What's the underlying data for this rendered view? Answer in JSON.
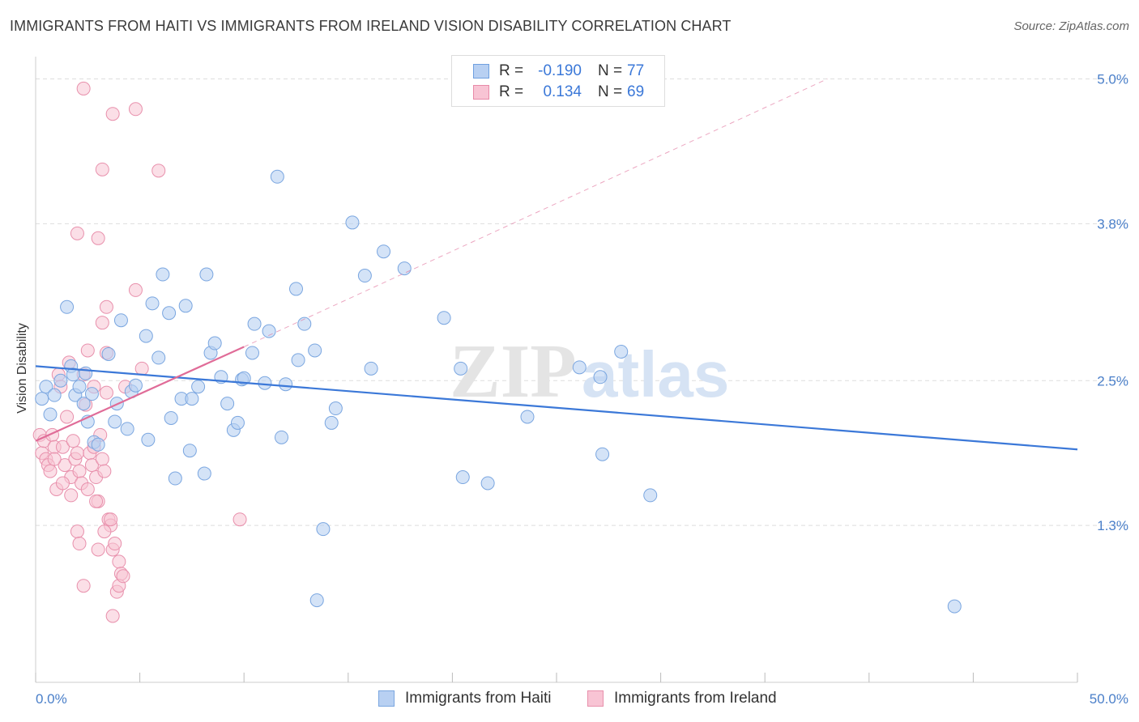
{
  "title": "IMMIGRANTS FROM HAITI VS IMMIGRANTS FROM IRELAND VISION DISABILITY CORRELATION CHART",
  "source": "Source: ZipAtlas.com",
  "watermark": {
    "zip": "ZIP",
    "atlas": "atlas"
  },
  "legend_stats": [
    {
      "r_label": "R =",
      "r_value": "-0.190",
      "n_label": "N =",
      "n_value": "77",
      "fill": "#b8d0f2",
      "stroke": "#6fa0e0"
    },
    {
      "r_label": "R =",
      "r_value": "0.134",
      "n_label": "N =",
      "n_value": "69",
      "fill": "#f8c4d4",
      "stroke": "#e88aa8"
    }
  ],
  "colors": {
    "haiti_fill": "#b8d0f2",
    "haiti_stroke": "#7aa6e0",
    "haiti_line": "#3b78d8",
    "ireland_fill": "#f8c4d4",
    "ireland_stroke": "#e890ac",
    "ireland_line": "#e06c98",
    "axis_text": "#4a7fc9",
    "grid": "#dddddd"
  },
  "chart_data": {
    "type": "scatter",
    "xlabel": "",
    "ylabel": "Vision Disability",
    "xlim": [
      0,
      50
    ],
    "ylim": [
      0,
      5.2
    ],
    "x_tick_labels": [
      "0.0%",
      "50.0%"
    ],
    "y_ticks": [
      1.3,
      2.5,
      3.8,
      5.0
    ],
    "y_tick_labels": [
      "1.3%",
      "2.5%",
      "3.8%",
      "5.0%"
    ],
    "grid": true,
    "legend_placement": "bottom-center",
    "series": [
      {
        "name": "Immigrants from Haiti",
        "trend": {
          "x": [
            0,
            50
          ],
          "y": [
            2.62,
            1.93
          ]
        },
        "points": [
          [
            0.3,
            2.35
          ],
          [
            0.5,
            2.45
          ],
          [
            0.7,
            2.22
          ],
          [
            0.9,
            2.38
          ],
          [
            1.2,
            2.5
          ],
          [
            1.5,
            3.11
          ],
          [
            1.7,
            2.62
          ],
          [
            1.8,
            2.55
          ],
          [
            1.9,
            2.38
          ],
          [
            2.1,
            2.45
          ],
          [
            2.3,
            2.31
          ],
          [
            2.5,
            2.16
          ],
          [
            2.4,
            2.56
          ],
          [
            2.7,
            2.39
          ],
          [
            2.8,
            1.99
          ],
          [
            3.0,
            1.97
          ],
          [
            3.5,
            2.72
          ],
          [
            3.8,
            2.16
          ],
          [
            3.9,
            2.31
          ],
          [
            4.1,
            3.0
          ],
          [
            4.4,
            2.1
          ],
          [
            4.6,
            2.41
          ],
          [
            4.8,
            2.46
          ],
          [
            5.3,
            2.87
          ],
          [
            5.4,
            2.01
          ],
          [
            5.6,
            3.14
          ],
          [
            5.9,
            2.69
          ],
          [
            6.1,
            3.38
          ],
          [
            6.4,
            3.06
          ],
          [
            6.5,
            2.19
          ],
          [
            6.7,
            1.69
          ],
          [
            7.0,
            2.35
          ],
          [
            7.2,
            3.12
          ],
          [
            7.4,
            1.92
          ],
          [
            7.5,
            2.35
          ],
          [
            7.8,
            2.45
          ],
          [
            8.1,
            1.73
          ],
          [
            8.2,
            3.38
          ],
          [
            8.4,
            2.73
          ],
          [
            8.6,
            2.81
          ],
          [
            8.9,
            2.53
          ],
          [
            9.2,
            2.31
          ],
          [
            9.5,
            2.09
          ],
          [
            9.7,
            2.15
          ],
          [
            9.9,
            2.51
          ],
          [
            10.0,
            2.52
          ],
          [
            10.4,
            2.73
          ],
          [
            10.5,
            2.97
          ],
          [
            11.0,
            2.48
          ],
          [
            11.2,
            2.91
          ],
          [
            11.6,
            4.19
          ],
          [
            11.8,
            2.03
          ],
          [
            12.0,
            2.47
          ],
          [
            12.5,
            3.26
          ],
          [
            12.6,
            2.67
          ],
          [
            12.9,
            2.97
          ],
          [
            13.4,
            2.75
          ],
          [
            13.8,
            1.27
          ],
          [
            13.5,
            0.68
          ],
          [
            14.2,
            2.15
          ],
          [
            14.4,
            2.27
          ],
          [
            15.2,
            3.81
          ],
          [
            15.8,
            3.37
          ],
          [
            16.1,
            2.6
          ],
          [
            16.7,
            3.57
          ],
          [
            17.7,
            3.43
          ],
          [
            19.6,
            3.02
          ],
          [
            20.4,
            2.6
          ],
          [
            20.5,
            1.7
          ],
          [
            21.7,
            1.65
          ],
          [
            23.6,
            2.2
          ],
          [
            26.1,
            2.61
          ],
          [
            27.1,
            2.53
          ],
          [
            27.2,
            1.89
          ],
          [
            28.1,
            2.74
          ],
          [
            29.5,
            1.55
          ],
          [
            44.1,
            0.63
          ]
        ]
      },
      {
        "name": "Immigrants from Ireland",
        "trend": {
          "x": [
            0,
            10
          ],
          "y": [
            2.0,
            2.78
          ],
          "extended_to": [
            38,
            5.0
          ]
        },
        "points": [
          [
            0.2,
            2.05
          ],
          [
            0.3,
            1.9
          ],
          [
            0.4,
            2.0
          ],
          [
            0.5,
            1.85
          ],
          [
            0.6,
            1.8
          ],
          [
            0.7,
            1.75
          ],
          [
            0.8,
            2.05
          ],
          [
            0.9,
            1.95
          ],
          [
            1.0,
            1.6
          ],
          [
            1.1,
            2.55
          ],
          [
            1.2,
            2.45
          ],
          [
            1.3,
            1.95
          ],
          [
            1.4,
            1.8
          ],
          [
            1.5,
            2.2
          ],
          [
            1.6,
            2.65
          ],
          [
            1.7,
            1.7
          ],
          [
            1.8,
            2.0
          ],
          [
            1.9,
            1.85
          ],
          [
            2.0,
            1.9
          ],
          [
            2.1,
            1.75
          ],
          [
            2.2,
            1.65
          ],
          [
            2.3,
            2.55
          ],
          [
            2.4,
            2.3
          ],
          [
            2.5,
            1.6
          ],
          [
            2.6,
            1.9
          ],
          [
            2.7,
            1.8
          ],
          [
            2.8,
            2.45
          ],
          [
            2.9,
            1.7
          ],
          [
            3.0,
            1.5
          ],
          [
            3.1,
            2.05
          ],
          [
            3.2,
            1.85
          ],
          [
            3.3,
            1.75
          ],
          [
            3.4,
            2.4
          ],
          [
            3.5,
            1.35
          ],
          [
            3.6,
            1.3
          ],
          [
            3.7,
            1.1
          ],
          [
            3.8,
            1.15
          ],
          [
            3.9,
            0.75
          ],
          [
            4.0,
            1.0
          ],
          [
            4.1,
            0.9
          ],
          [
            0.9,
            1.85
          ],
          [
            1.3,
            1.65
          ],
          [
            1.7,
            1.55
          ],
          [
            2.0,
            1.25
          ],
          [
            2.1,
            1.15
          ],
          [
            2.3,
            0.8
          ],
          [
            2.5,
            2.75
          ],
          [
            2.8,
            1.95
          ],
          [
            2.9,
            1.5
          ],
          [
            3.0,
            1.1
          ],
          [
            3.3,
            1.25
          ],
          [
            3.6,
            1.35
          ],
          [
            3.7,
            0.55
          ],
          [
            4.0,
            0.8
          ],
          [
            4.2,
            0.88
          ],
          [
            4.3,
            2.45
          ],
          [
            4.8,
            3.25
          ],
          [
            5.1,
            2.6
          ],
          [
            5.9,
            4.24
          ],
          [
            9.8,
            1.35
          ],
          [
            2.0,
            3.72
          ],
          [
            3.0,
            3.68
          ],
          [
            3.4,
            3.11
          ],
          [
            3.2,
            2.98
          ],
          [
            3.4,
            2.73
          ],
          [
            3.2,
            4.25
          ],
          [
            2.3,
            4.92
          ],
          [
            3.7,
            4.71
          ],
          [
            4.8,
            4.75
          ]
        ]
      }
    ]
  }
}
